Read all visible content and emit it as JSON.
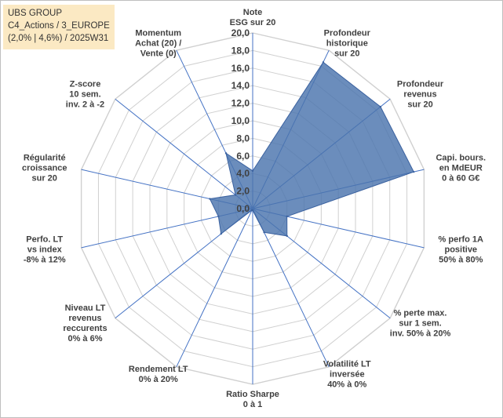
{
  "info": {
    "line1": "UBS GROUP",
    "line2": "C4_Actions / 3_EUROPE",
    "line3": "(2,0% | 4,6%) / 2025W31"
  },
  "colors": {
    "fill": "#4a74ad",
    "grid": "#d0d0d0",
    "spoke": "#4472c4",
    "text": "#404040"
  },
  "chart_data": {
    "type": "radar",
    "rmax": 20,
    "ticks": [
      "0,0",
      "2,0",
      "4,0",
      "6,0",
      "8,0",
      "10,0",
      "12,0",
      "14,0",
      "16,0",
      "18,0",
      "20,0"
    ],
    "axes": [
      {
        "label": [
          "Note",
          "ESG sur 20"
        ],
        "value": 4.3
      },
      {
        "label": [
          "Profondeur",
          "historique",
          "sur 20"
        ],
        "value": 18.5
      },
      {
        "label": [
          "Profondeur",
          "revenus",
          "sur 20"
        ],
        "value": 18.6
      },
      {
        "label": [
          "Capi. bours.",
          "en MdEUR",
          "0 à 60 G€"
        ],
        "value": 18.8
      },
      {
        "label": [
          "% perfo 1A",
          "positive",
          "50% à 80%"
        ],
        "value": 4.0
      },
      {
        "label": [
          "% perte max.",
          "sur 1 sem.",
          "inv. 50% à 20%"
        ],
        "value": 5.0
      },
      {
        "label": [
          "Volatilité LT",
          "inversée",
          "40% à 0%"
        ],
        "value": 3.0
      },
      {
        "label": [
          "Ratio Sharpe",
          "0 à 1"
        ],
        "value": 0.2
      },
      {
        "label": [
          "Rendement LT",
          "0% à 20%"
        ],
        "value": 0.2
      },
      {
        "label": [
          "Niveau LT",
          "revenus",
          "reccurents",
          "0% à 6%"
        ],
        "value": 4.6
      },
      {
        "label": [
          "Perfo. LT",
          "vs index",
          "-8% à 12%"
        ],
        "value": 4.0
      },
      {
        "label": [
          "Régularité",
          "croissance",
          "sur 20"
        ],
        "value": 5.0
      },
      {
        "label": [
          "Z-score",
          "10 sem.",
          "inv. 2 à -2"
        ],
        "value": 2.5
      },
      {
        "label": [
          "Momentum",
          "Achat (20) /",
          "Vente (0)"
        ],
        "value": 7.0
      }
    ]
  }
}
